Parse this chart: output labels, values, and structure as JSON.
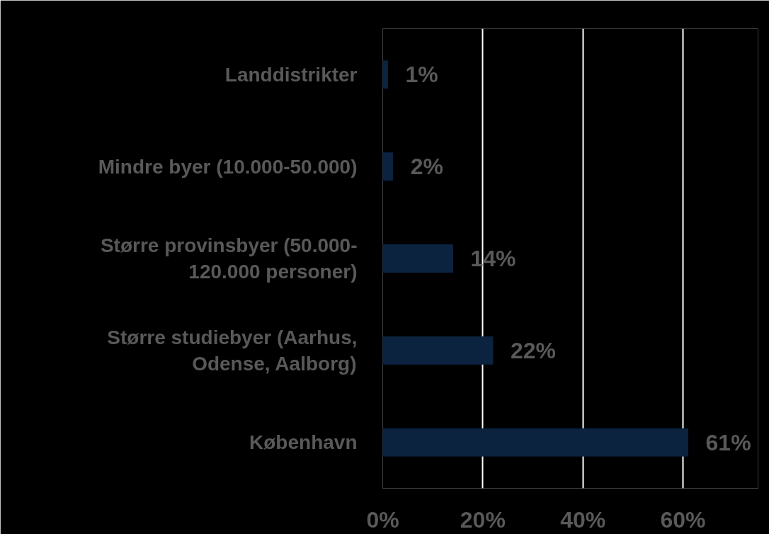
{
  "chart_data": {
    "type": "bar",
    "orientation": "horizontal",
    "categories": [
      "Landdistrikter",
      "Mindre byer (10.000-50.000)",
      "Større provinsbyer (50.000-\n120.000 personer)",
      "Større studiebyer (Aarhus,\nOdense, Aalborg)",
      "København"
    ],
    "values": [
      1,
      2,
      14,
      22,
      61
    ],
    "value_labels": [
      "1%",
      "2%",
      "14%",
      "22%",
      "61%"
    ],
    "color": "#0c2340",
    "xlim": [
      0,
      75
    ],
    "xticks": [
      {
        "value": 0,
        "label": "0%"
      },
      {
        "value": 20,
        "label": "20%"
      },
      {
        "value": 40,
        "label": "40%"
      },
      {
        "value": 60,
        "label": "60%"
      }
    ],
    "grid": "x"
  }
}
